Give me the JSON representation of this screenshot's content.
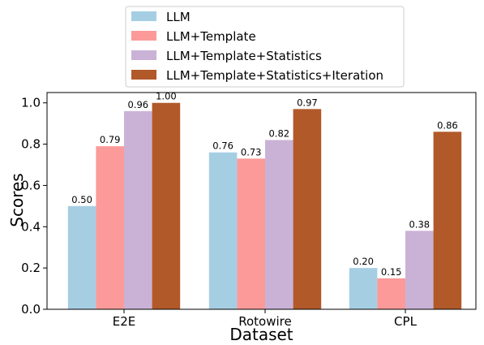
{
  "chart_data": {
    "type": "bar",
    "categories": [
      "E2E",
      "Rotowire",
      "CPL"
    ],
    "series": [
      {
        "name": "LLM",
        "values": [
          0.5,
          0.76,
          0.2
        ],
        "labels": [
          "0.50",
          "0.76",
          "0.20"
        ],
        "color": "#a6cee3"
      },
      {
        "name": "LLM+Template",
        "values": [
          0.79,
          0.73,
          0.15
        ],
        "labels": [
          "0.79",
          "0.73",
          "0.15"
        ],
        "color": "#fb9a99"
      },
      {
        "name": "LLM+Template+Statistics",
        "values": [
          0.96,
          0.82,
          0.38
        ],
        "labels": [
          "0.96",
          "0.82",
          "0.38"
        ],
        "color": "#cab2d6"
      },
      {
        "name": "LLM+Template+Statistics+Iteration",
        "values": [
          1.0,
          0.97,
          0.86
        ],
        "labels": [
          "1.00",
          "0.97",
          "0.86"
        ],
        "color": "#b15928"
      }
    ],
    "xlabel": "Dataset",
    "ylabel": "Scores",
    "ylim": [
      0,
      1.05
    ],
    "yticks": [
      0.0,
      0.2,
      0.4,
      0.6,
      0.8,
      1.0
    ],
    "ytick_labels": [
      "0.0",
      "0.2",
      "0.4",
      "0.6",
      "0.8",
      "1.0"
    ],
    "grid": false,
    "legend_position": "top-center"
  }
}
